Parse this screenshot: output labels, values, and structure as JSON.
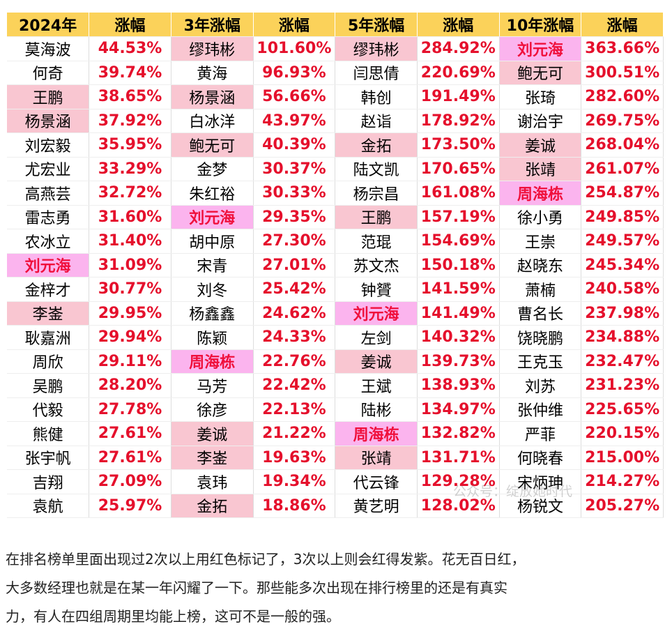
{
  "table": {
    "header": [
      "2024年",
      "涨幅",
      "3年涨幅",
      "涨幅",
      "5年涨幅",
      "涨幅",
      "10年涨幅",
      "涨幅"
    ],
    "rows": [
      [
        "莫海波",
        "44.53%",
        "缪玮彬",
        "101.60%",
        "缪玮彬",
        "284.92%",
        "刘元海",
        "363.66%"
      ],
      [
        "何奇",
        "39.74%",
        "黄海",
        "96.93%",
        "闫思倩",
        "220.69%",
        "鲍无可",
        "300.51%"
      ],
      [
        "王鹏",
        "38.65%",
        "杨景涵",
        "56.66%",
        "韩创",
        "191.49%",
        "张琦",
        "282.60%"
      ],
      [
        "杨景涵",
        "37.92%",
        "白冰洋",
        "43.97%",
        "赵诣",
        "178.92%",
        "谢治宇",
        "269.75%"
      ],
      [
        "刘宏毅",
        "35.95%",
        "鲍无可",
        "40.39%",
        "金拓",
        "173.50%",
        "姜诚",
        "268.04%"
      ],
      [
        "尤宏业",
        "33.29%",
        "金梦",
        "30.37%",
        "陆文凯",
        "170.65%",
        "张靖",
        "261.07%"
      ],
      [
        "高燕芸",
        "32.72%",
        "朱红裕",
        "30.33%",
        "杨宗昌",
        "161.08%",
        "周海栋",
        "254.87%"
      ],
      [
        "雷志勇",
        "31.60%",
        "刘元海",
        "29.35%",
        "王鹏",
        "157.19%",
        "徐小勇",
        "249.85%"
      ],
      [
        "农冰立",
        "31.40%",
        "胡中原",
        "27.30%",
        "范琨",
        "154.69%",
        "王崇",
        "249.57%"
      ],
      [
        "刘元海",
        "31.09%",
        "宋青",
        "27.01%",
        "苏文杰",
        "150.18%",
        "赵晓东",
        "245.34%"
      ],
      [
        "金梓才",
        "30.77%",
        "刘冬",
        "25.42%",
        "钟贇",
        "141.59%",
        "萧楠",
        "240.58%"
      ],
      [
        "李崟",
        "29.95%",
        "杨鑫鑫",
        "24.62%",
        "刘元海",
        "141.49%",
        "曹名长",
        "237.98%"
      ],
      [
        "耿嘉洲",
        "29.94%",
        "陈颖",
        "24.33%",
        "左剑",
        "140.32%",
        "饶晓鹏",
        "234.88%"
      ],
      [
        "周欣",
        "29.11%",
        "周海栋",
        "22.76%",
        "姜诚",
        "139.73%",
        "王克玉",
        "232.47%"
      ],
      [
        "吴鹏",
        "28.20%",
        "马芳",
        "22.42%",
        "王斌",
        "138.93%",
        "刘苏",
        "231.23%"
      ],
      [
        "代毅",
        "27.78%",
        "徐彦",
        "22.13%",
        "陆彬",
        "134.97%",
        "张仲维",
        "225.65%"
      ],
      [
        "熊健",
        "27.61%",
        "姜诚",
        "21.22%",
        "周海栋",
        "132.82%",
        "严菲",
        "220.15%"
      ],
      [
        "张宇帆",
        "27.61%",
        "李崟",
        "19.63%",
        "张靖",
        "131.71%",
        "何晓春",
        "215.00%"
      ],
      [
        "吉翔",
        "27.09%",
        "袁玮",
        "19.34%",
        "代云锋",
        "129.28%",
        "宋炳珅",
        "214.27%"
      ],
      [
        "袁航",
        "25.97%",
        "金拓",
        "18.86%",
        "黄艺明",
        "128.02%",
        "杨锐文",
        "205.27%"
      ]
    ],
    "highlights": [
      {
        "names": [
          "缪玮彬",
          "鲍无可",
          "王鹏",
          "杨景涵",
          "金拓",
          "姜诚",
          "张靖",
          "李崟"
        ],
        "color": "#f9c6d1",
        "bold": false
      },
      {
        "names": [
          "刘元海",
          "周海栋"
        ],
        "color": "#fbb4ee",
        "bold": true
      }
    ],
    "watermark": "公众号：绽放她时代"
  },
  "text": {
    "lines": [
      "在排名榜单里面出现过2次以上用红色标记了，3次以上则会红得发紫。花无百日红，",
      "大多数经理也就是在某一年闪耀了一下。那些能多次出现在排行榜里的还是有真实",
      "力，有人在四组周期里均能上榜，这可不是一般的强。"
    ]
  }
}
